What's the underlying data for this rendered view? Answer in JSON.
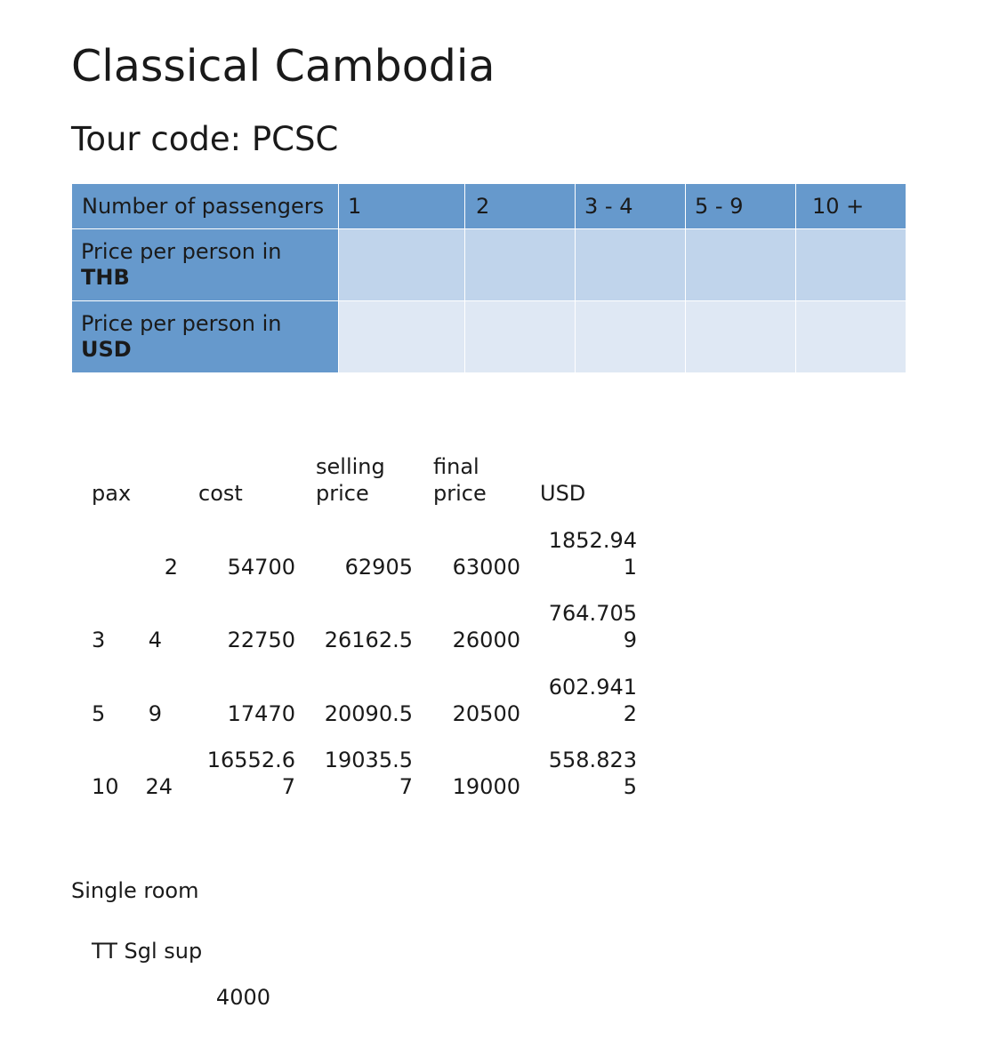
{
  "title": "Classical Cambodia",
  "subtitle": "Tour code: PCSC",
  "price_table": {
    "header": [
      "Number of passengers",
      "1",
      "2",
      "3 - 4",
      "5 - 9",
      "10 +"
    ],
    "rows": [
      {
        "label_prefix": "Price per person in",
        "label_currency": "THB",
        "values": [
          "",
          "",
          "",
          "",
          ""
        ]
      },
      {
        "label_prefix": "Price per person in",
        "label_currency": "USD",
        "values": [
          "",
          "",
          "",
          "",
          ""
        ]
      }
    ]
  },
  "calc_table": {
    "headers": {
      "pax": "pax",
      "cost": "cost",
      "selling_price": "selling\nprice",
      "final_price": "final\nprice",
      "usd": "USD"
    },
    "rows": [
      {
        "pax_from": "",
        "pax_to": "2",
        "cost": "54700",
        "selling_price": "62905",
        "final_price": "63000",
        "usd": "1852.94\n1"
      },
      {
        "pax_from": "3",
        "pax_to": "4",
        "cost": "22750",
        "selling_price": "26162.5",
        "final_price": "26000",
        "usd": "764.705\n9"
      },
      {
        "pax_from": "5",
        "pax_to": "9",
        "cost": "17470",
        "selling_price": "20090.5",
        "final_price": "20500",
        "usd": "602.941\n2"
      },
      {
        "pax_from": "10",
        "pax_to": "24",
        "cost": "16552.6\n7",
        "selling_price": "19035.5\n7",
        "final_price": "19000",
        "usd": "558.823\n5"
      }
    ]
  },
  "single_room": {
    "heading": "Single room",
    "label": "TT Sgl sup",
    "value": "4000"
  },
  "colors": {
    "header_blue": "#6699cc",
    "thb_row": "#c0d4eb",
    "usd_row": "#dfe8f4"
  }
}
